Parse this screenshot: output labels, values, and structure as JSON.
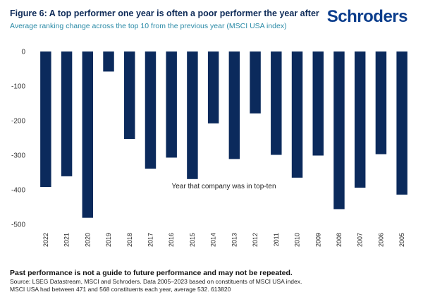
{
  "header": {
    "title": "Figure 6: A top performer one year is often a poor performer the year after",
    "subtitle": "Average ranking change across the top 10 from the previous year (MSCI USA index)",
    "logo": "Schroders"
  },
  "colors": {
    "bar": "#0b2a5c",
    "title": "#0d2a57",
    "subtitle": "#2a8aa6",
    "logo": "#0b3d8c"
  },
  "chart_data": {
    "type": "bar",
    "title": "Figure 6: A top performer one year is often a poor performer the year after",
    "subtitle": "Average ranking change across the top 10 from the previous year (MSCI USA index)",
    "xlabel": "Year that company was in top-ten",
    "ylabel": "",
    "categories": [
      "2022",
      "2021",
      "2020",
      "2019",
      "2018",
      "2017",
      "2016",
      "2015",
      "2014",
      "2013",
      "2012",
      "2011",
      "2010",
      "2009",
      "2008",
      "2007",
      "2006",
      "2005"
    ],
    "values": [
      -392,
      -361,
      -481,
      -58,
      -253,
      -339,
      -307,
      -369,
      -208,
      -311,
      -179,
      -299,
      -365,
      -301,
      -456,
      -394,
      -297,
      -414
    ],
    "ylim": [
      -500,
      0
    ],
    "yticks": [
      0,
      -100,
      -200,
      -300,
      -400,
      -500
    ],
    "ytick_labels": [
      "0",
      "-100",
      "-200",
      "-300",
      "-400",
      "-500"
    ],
    "grid": false,
    "legend": "none"
  },
  "footer": {
    "disclaimer": "Past performance is not a guide to future performance and may not be repeated.",
    "source": "Source: LSEG Datastream, MSCI and Schroders. Data 2005–2023 based on constituents of MSCI USA index.",
    "note": "MSCI USA had between 471 and 568 constituents each year, average 532. 613820"
  }
}
